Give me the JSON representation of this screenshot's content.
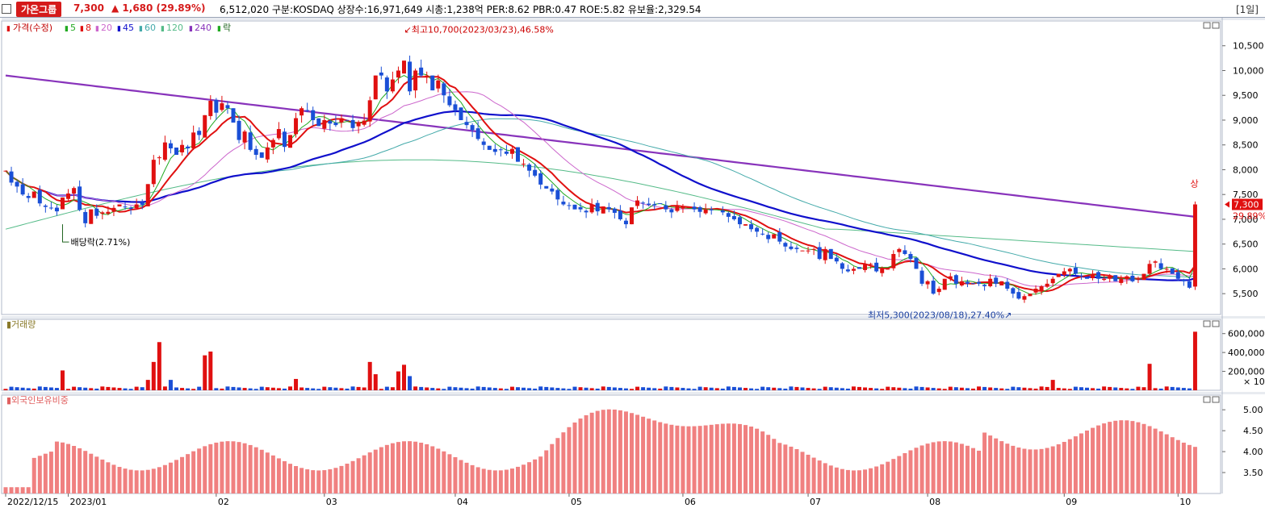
{
  "header": {
    "stock_name": "가온그룹",
    "price": "7,300",
    "change": "▲ 1,680 (29.89%)",
    "stats": "6,512,020  구분:KOSDAQ  상장수:16,971,649  시총:1,238억  PER:8.62  PBR:0.47  ROE:5.82  유보율:2,329.54",
    "period": "[1일]"
  },
  "colors": {
    "up": "#e01010",
    "down": "#1a4fd6",
    "ma5": "#22aa22",
    "ma8": "#e01010",
    "ma20": "#cc66cc",
    "ma45": "#1010cc",
    "ma60": "#44aaaa",
    "ma120": "#55bb88",
    "ma240": "#8833bb",
    "foreign": "#f08080"
  },
  "legend": {
    "marker": "▮",
    "price_label": "가격(수정)",
    "ma": [
      "5",
      "8",
      "20",
      "45",
      "60",
      "120",
      "240"
    ],
    "tail": "락"
  },
  "volume_legend": "거래량",
  "foreign_legend": "외국인보유비중",
  "annotations": {
    "high": "최고10,700(2023/03/23),46.58%",
    "low": "최저5,300(2023/08/18),27.40%",
    "dividend": "배당락(2.71%)",
    "upper_limit": "상",
    "last_price": "7,300",
    "last_pct": "29.89%",
    "vol_unit": "× 10"
  },
  "chart_data": {
    "type": "candlestick",
    "price_axis": {
      "ticks": [
        "10,500",
        "10,000",
        "9,500",
        "9,000",
        "8,500",
        "8,000",
        "7,500",
        "7,000",
        "6,500",
        "6,000",
        "5,500"
      ],
      "values": [
        10500,
        10000,
        9500,
        9000,
        8500,
        8000,
        7500,
        7000,
        6500,
        6000,
        5500
      ],
      "range": [
        5080,
        11000
      ]
    },
    "volume_axis": {
      "ticks": [
        "600,000",
        "400,000",
        "200,000"
      ],
      "values": [
        600000,
        400000,
        200000
      ],
      "range": [
        0,
        700000
      ]
    },
    "foreign_axis": {
      "ticks": [
        "5.00",
        "4.50",
        "4.00",
        "3.50"
      ],
      "values": [
        5.0,
        4.5,
        4.0,
        3.5
      ],
      "range": [
        3.0,
        5.35
      ]
    },
    "x_labels": [
      {
        "i": 0,
        "t": "2022/12/15"
      },
      {
        "i": 11,
        "t": "2023/01"
      },
      {
        "i": 37,
        "t": "02"
      },
      {
        "i": 56,
        "t": "03"
      },
      {
        "i": 79,
        "t": "04"
      },
      {
        "i": 99,
        "t": "05"
      },
      {
        "i": 119,
        "t": "06"
      },
      {
        "i": 141,
        "t": "07"
      },
      {
        "i": 162,
        "t": "08"
      },
      {
        "i": 186,
        "t": "09"
      },
      {
        "i": 206,
        "t": "10"
      }
    ],
    "ohlc_approx_close": [
      7980,
      7740,
      7660,
      7500,
      7430,
      7560,
      7320,
      7250,
      7220,
      7160,
      7440,
      7520,
      7630,
      7190,
      6920,
      7200,
      7070,
      7140,
      7150,
      7230,
      7300,
      7250,
      7210,
      7300,
      7290,
      7710,
      8200,
      8250,
      8550,
      8430,
      8300,
      8500,
      8430,
      8750,
      8700,
      9100,
      9390,
      9150,
      9340,
      9240,
      8950,
      8600,
      8770,
      8400,
      8300,
      8240,
      8450,
      8600,
      8820,
      8460,
      8700,
      9040,
      9240,
      9200,
      9000,
      8880,
      9000,
      8930,
      8900,
      9040,
      9000,
      8840,
      8960,
      8990,
      9400,
      9900,
      9900,
      9580,
      9820,
      10000,
      10200,
      9580,
      10000,
      9900,
      9900,
      9600,
      9800,
      9500,
      9300,
      9200,
      9000,
      8900,
      8800,
      8620,
      8500,
      8400,
      8360,
      8400,
      8320,
      8420,
      8160,
      8120,
      7980,
      7880,
      7700,
      7620,
      7560,
      7400,
      7300,
      7280,
      7200,
      7200,
      7140,
      7300,
      7160,
      7260,
      7200,
      7130,
      7000,
      6900,
      7240,
      7380,
      7330,
      7290,
      7280,
      7310,
      7200,
      7140,
      7260,
      7250,
      7240,
      7200,
      7150,
      7200,
      7180,
      7220,
      7140,
      7050,
      7000,
      6900,
      6900,
      6800,
      6750,
      6700,
      6600,
      6700,
      6550,
      6450,
      6400,
      6400,
      6370,
      6370,
      6400,
      6200,
      6400,
      6200,
      6150,
      6000,
      5950,
      6000,
      6000,
      6100,
      6100,
      5950,
      6000,
      6000,
      6300,
      6400,
      6300,
      6200,
      6000,
      5700,
      5750,
      5500,
      5600,
      5800,
      5850,
      5700,
      5750,
      5700,
      5700,
      5700,
      5650,
      5800,
      5700,
      5750,
      5600,
      5500,
      5400,
      5450,
      5500,
      5600,
      5650,
      5700,
      5800,
      5900,
      5950,
      6000,
      5900,
      5850,
      5800,
      5900,
      5800,
      5800,
      5850,
      5750,
      5800,
      5850,
      5750,
      5800,
      5900,
      6100,
      6150,
      6000,
      6000,
      5900,
      5800,
      5750,
      5620,
      7300
    ],
    "ma_series": [
      "5",
      "8",
      "20",
      "45",
      "60",
      "120",
      "240"
    ],
    "volume_note": "daily volume bars (×10 shares), spike 600,000+ on last day",
    "foreign_note": "foreign ownership ratio %, range approx 3.1–5.3"
  }
}
